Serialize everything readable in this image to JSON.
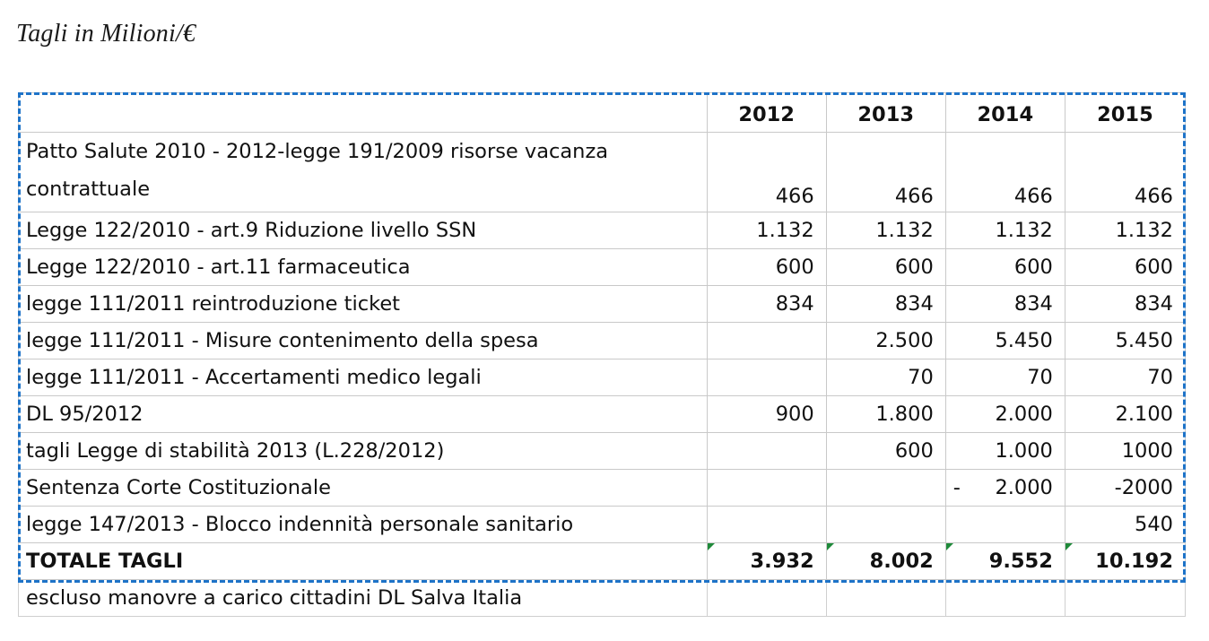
{
  "caption": "Tagli in Milioni/€",
  "table": {
    "years": [
      "2012",
      "2013",
      "2014",
      "2015"
    ],
    "rows": [
      {
        "label": "Patto Salute 2010 - 2012-legge 191/2009 risorse vacanza contrattuale",
        "values": [
          "466",
          "466",
          "466",
          "466"
        ]
      },
      {
        "label": "Legge 122/2010 - art.9 Riduzione livello SSN",
        "values": [
          "1.132",
          "1.132",
          "1.132",
          "1.132"
        ]
      },
      {
        "label": "Legge 122/2010 - art.11 farmaceutica",
        "values": [
          "600",
          "600",
          "600",
          "600"
        ]
      },
      {
        "label": "legge 111/2011 reintroduzione ticket",
        "values": [
          "834",
          "834",
          "834",
          "834"
        ]
      },
      {
        "label": "legge 111/2011 - Misure contenimento della spesa",
        "values": [
          "",
          "2.500",
          "5.450",
          "5.450"
        ]
      },
      {
        "label": "legge 111/2011 - Accertamenti medico legali",
        "values": [
          "",
          "70",
          "70",
          "70"
        ]
      },
      {
        "label": "DL 95/2012",
        "values": [
          "900",
          "1.800",
          "2.000",
          "2.100"
        ]
      },
      {
        "label": "tagli Legge di stabilità 2013 (L.228/2012)",
        "values": [
          "",
          "600",
          "1.000",
          "1000"
        ]
      },
      {
        "label": "Sentenza Corte Costituzionale",
        "values": [
          "",
          "",
          "2.000",
          "-2000"
        ],
        "prefix_2014": "-"
      },
      {
        "label": "legge 147/2013 - Blocco indennità personale sanitario",
        "values": [
          "",
          "",
          "",
          "540"
        ]
      }
    ],
    "total": {
      "label": "TOTALE TAGLI",
      "values": [
        "3.932",
        "8.002",
        "9.552",
        "10.192"
      ]
    },
    "note": {
      "label": "escluso manovre a carico cittadini DL Salva Italia"
    }
  },
  "colors": {
    "selection_border": "#1e73c8",
    "grid": "#c9c9c9",
    "error_flag": "#1f8a3a"
  }
}
